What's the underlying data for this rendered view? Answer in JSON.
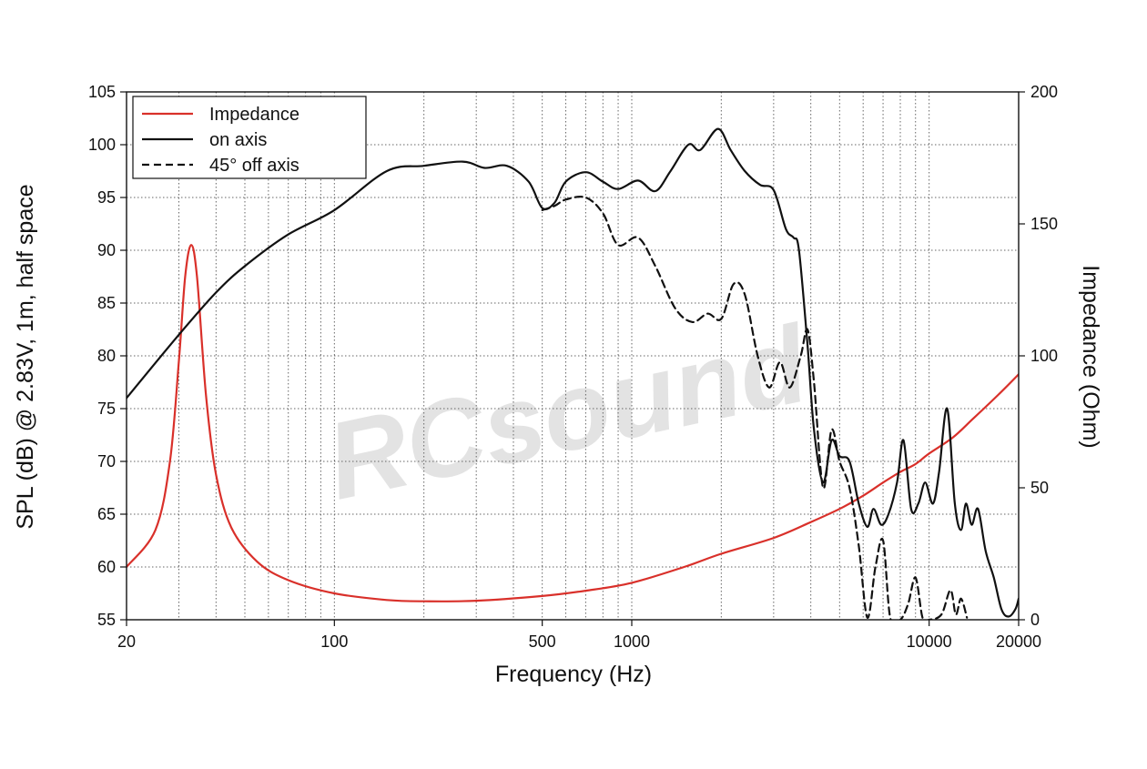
{
  "chart_data": {
    "type": "line",
    "xlabel": "Frequency (Hz)",
    "ylabel": "SPL (dB) @ 2.83V, 1m, half space",
    "y2label": "Impedance (Ohm)",
    "xscale": "log",
    "xlim": [
      20,
      20000
    ],
    "ylim": [
      55,
      105
    ],
    "y2lim": [
      0,
      200
    ],
    "grid": true,
    "legend_position": "top-left",
    "watermark": "RCsound",
    "x_ticks": [
      {
        "value": 20,
        "label": "20"
      },
      {
        "value": 100,
        "label": "100"
      },
      {
        "value": 500,
        "label": "500"
      },
      {
        "value": 1000,
        "label": "1000"
      },
      {
        "value": 10000,
        "label": "10000"
      },
      {
        "value": 20000,
        "label": "20000"
      }
    ],
    "y_ticks": [
      55,
      60,
      65,
      70,
      75,
      80,
      85,
      90,
      95,
      100,
      105
    ],
    "y2_ticks": [
      0,
      50,
      100,
      150,
      200
    ],
    "series": [
      {
        "name": "Impedance",
        "axis": "right",
        "color": "#d9302a",
        "dash": "solid",
        "points": [
          [
            20,
            20
          ],
          [
            25,
            34
          ],
          [
            28,
            60
          ],
          [
            30,
            98
          ],
          [
            31.5,
            130
          ],
          [
            33,
            142
          ],
          [
            34.5,
            130
          ],
          [
            37,
            85
          ],
          [
            40,
            55
          ],
          [
            45,
            35
          ],
          [
            55,
            22
          ],
          [
            70,
            15
          ],
          [
            100,
            10
          ],
          [
            150,
            7.5
          ],
          [
            200,
            7
          ],
          [
            300,
            7.2
          ],
          [
            500,
            9
          ],
          [
            700,
            11
          ],
          [
            1000,
            14
          ],
          [
            1500,
            20
          ],
          [
            2000,
            25
          ],
          [
            3000,
            31
          ],
          [
            4000,
            37
          ],
          [
            5000,
            42
          ],
          [
            6000,
            47
          ],
          [
            7000,
            52
          ],
          [
            8000,
            56
          ],
          [
            9000,
            59
          ],
          [
            10000,
            63
          ],
          [
            12000,
            69
          ],
          [
            14000,
            76
          ],
          [
            17000,
            85
          ],
          [
            20000,
            93
          ]
        ]
      },
      {
        "name": "on axis",
        "axis": "left",
        "color": "#111111",
        "dash": "solid",
        "points": [
          [
            20,
            76
          ],
          [
            30,
            82
          ],
          [
            40,
            86
          ],
          [
            50,
            88.5
          ],
          [
            70,
            91.5
          ],
          [
            100,
            93.8
          ],
          [
            150,
            97.5
          ],
          [
            200,
            98
          ],
          [
            270,
            98.4
          ],
          [
            320,
            97.8
          ],
          [
            380,
            98
          ],
          [
            450,
            96.5
          ],
          [
            500,
            94
          ],
          [
            550,
            94.5
          ],
          [
            600,
            96.5
          ],
          [
            700,
            97.4
          ],
          [
            800,
            96.5
          ],
          [
            900,
            95.8
          ],
          [
            1050,
            96.6
          ],
          [
            1200,
            95.6
          ],
          [
            1350,
            97.5
          ],
          [
            1550,
            100
          ],
          [
            1700,
            99.5
          ],
          [
            1950,
            101.5
          ],
          [
            2150,
            99.5
          ],
          [
            2400,
            97.5
          ],
          [
            2700,
            96.2
          ],
          [
            3000,
            95.7
          ],
          [
            3300,
            92
          ],
          [
            3500,
            91.2
          ],
          [
            3650,
            90
          ],
          [
            3900,
            81
          ],
          [
            4100,
            73
          ],
          [
            4400,
            68
          ],
          [
            4700,
            72
          ],
          [
            5000,
            70.5
          ],
          [
            5400,
            70
          ],
          [
            5800,
            66
          ],
          [
            6200,
            63.8
          ],
          [
            6500,
            65.5
          ],
          [
            6900,
            64
          ],
          [
            7300,
            65
          ],
          [
            7800,
            68
          ],
          [
            8200,
            72
          ],
          [
            8700,
            65.5
          ],
          [
            9200,
            66
          ],
          [
            9700,
            68
          ],
          [
            10300,
            66
          ],
          [
            10800,
            69
          ],
          [
            11500,
            75
          ],
          [
            12200,
            66
          ],
          [
            12800,
            63.5
          ],
          [
            13300,
            66
          ],
          [
            13900,
            64
          ],
          [
            14600,
            65.5
          ],
          [
            15500,
            61.5
          ],
          [
            16500,
            59
          ],
          [
            17500,
            56
          ],
          [
            18500,
            55.3
          ],
          [
            19500,
            56
          ],
          [
            20000,
            57
          ]
        ]
      },
      {
        "name": "45° off axis",
        "axis": "left",
        "color": "#111111",
        "dash": "dashed",
        "points": [
          [
            500,
            93.8
          ],
          [
            550,
            94.2
          ],
          [
            600,
            94.8
          ],
          [
            700,
            95
          ],
          [
            800,
            93.5
          ],
          [
            900,
            90.5
          ],
          [
            1050,
            91.2
          ],
          [
            1200,
            88.5
          ],
          [
            1400,
            84.5
          ],
          [
            1600,
            83.2
          ],
          [
            1800,
            84
          ],
          [
            2000,
            83.5
          ],
          [
            2200,
            86.8
          ],
          [
            2400,
            85.8
          ],
          [
            2650,
            80
          ],
          [
            2900,
            77
          ],
          [
            3150,
            79.4
          ],
          [
            3400,
            77
          ],
          [
            3700,
            80
          ],
          [
            3900,
            82.5
          ],
          [
            4100,
            77.5
          ],
          [
            4400,
            67.5
          ],
          [
            4700,
            73
          ],
          [
            5000,
            70
          ],
          [
            5400,
            67.5
          ],
          [
            5800,
            62
          ],
          [
            6200,
            55.2
          ],
          [
            6600,
            60
          ],
          [
            7000,
            62.5
          ],
          [
            7400,
            55.2
          ],
          [
            8000,
            55
          ],
          [
            8500,
            56.5
          ],
          [
            9000,
            59
          ],
          [
            9500,
            55.2
          ],
          [
            10000,
            55
          ],
          [
            11000,
            55.5
          ],
          [
            11800,
            57.8
          ],
          [
            12300,
            55.5
          ],
          [
            12800,
            57
          ],
          [
            13400,
            55.2
          ]
        ]
      }
    ]
  }
}
